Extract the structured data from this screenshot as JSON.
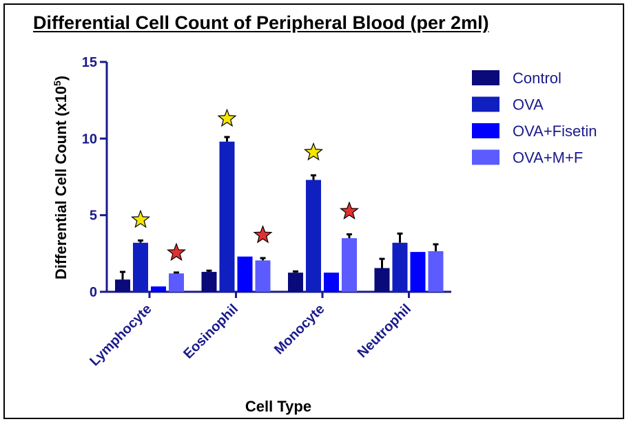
{
  "chart_data": {
    "type": "bar",
    "title": "Differential Cell Count of Peripheral Blood (per 2ml)",
    "xlabel": "Cell Type",
    "ylabel": "Differential Cell Count (x10",
    "ylabel_sup": "5",
    "ylabel_suffix": ")",
    "ylim": [
      0,
      15
    ],
    "yticks": [
      "0",
      "5",
      "10",
      "15"
    ],
    "categories": [
      "Lymphocyte",
      "Eosinophil",
      "Monocyte",
      "Neutrophil"
    ],
    "legend_position": "top-right",
    "grid": false,
    "series": [
      {
        "name": "Control",
        "color": "#0a0a7a",
        "values": [
          0.8,
          1.3,
          1.25,
          1.55
        ],
        "errors": [
          0.5,
          0.08,
          0.08,
          0.6
        ]
      },
      {
        "name": "OVA",
        "color": "#0f1fc0",
        "values": [
          3.2,
          9.8,
          7.3,
          3.2
        ],
        "errors": [
          0.15,
          0.3,
          0.3,
          0.6
        ]
      },
      {
        "name": "OVA+Fisetin",
        "color": "#0000ff",
        "values": [
          0.35,
          2.3,
          1.25,
          2.6
        ],
        "errors": [
          0.0,
          0.0,
          0.0,
          0.0
        ]
      },
      {
        "name": "OVA+M+F",
        "color": "#5b5bff",
        "values": [
          1.2,
          2.05,
          3.5,
          2.65
        ],
        "errors": [
          0.06,
          0.15,
          0.25,
          0.45
        ]
      }
    ],
    "annotations": [
      {
        "type": "star",
        "color": "#f5e600",
        "category": 0,
        "series": 1,
        "value": 4.7
      },
      {
        "type": "star",
        "color": "#e03030",
        "category": 0,
        "series": 3,
        "value": 2.55
      },
      {
        "type": "star",
        "color": "#f5e600",
        "category": 1,
        "series": 1,
        "value": 11.3
      },
      {
        "type": "star",
        "color": "#e03030",
        "category": 1,
        "series": 3,
        "value": 3.7
      },
      {
        "type": "star",
        "color": "#f5e600",
        "category": 2,
        "series": 1,
        "value": 9.1
      },
      {
        "type": "star",
        "color": "#e03030",
        "category": 2,
        "series": 3,
        "value": 5.25
      }
    ]
  }
}
